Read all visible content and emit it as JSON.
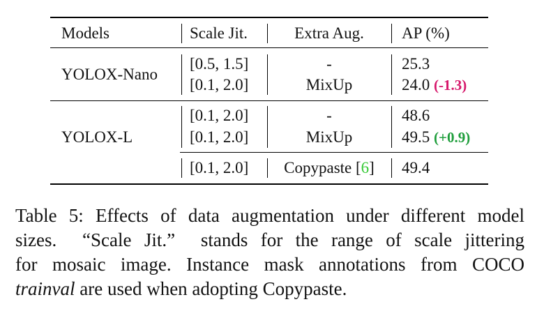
{
  "table": {
    "headers": {
      "models": "Models",
      "scale": "Scale Jit.",
      "aug": "Extra Aug.",
      "ap": "AP (%)"
    },
    "rows": [
      {
        "model": "YOLOX-Nano",
        "scale": "[0.5, 1.5]",
        "aug": "-",
        "ap": "25.3",
        "delta": ""
      },
      {
        "model": "",
        "scale": "[0.1, 2.0]",
        "aug": "MixUp",
        "ap": "24.0",
        "delta": "(-1.3)"
      },
      {
        "model": "YOLOX-L",
        "scale": "[0.1, 2.0]",
        "aug": "-",
        "ap": "48.6",
        "delta": ""
      },
      {
        "model": "",
        "scale": "[0.1, 2.0]",
        "aug": "MixUp",
        "ap": "49.5",
        "delta": "(+0.9)"
      },
      {
        "model": "",
        "scale": "[0.1, 2.0]",
        "aug": "Copypaste",
        "cite": "6",
        "ap": "49.4",
        "delta": ""
      }
    ]
  },
  "caption": {
    "line1": "Table 5: Effects of data augmentation under different model",
    "line2": "sizes.  “Scale Jit.”  stands for the range of scale jittering",
    "line3": "for mosaic image. Instance mask annotations from COCO",
    "line4_italic": "trainval",
    "line4_rest": " are used when adopting Copypaste."
  },
  "colors": {
    "negative_delta": "#d6176b",
    "positive_delta": "#1f9e3c",
    "citation": "#36c936"
  }
}
